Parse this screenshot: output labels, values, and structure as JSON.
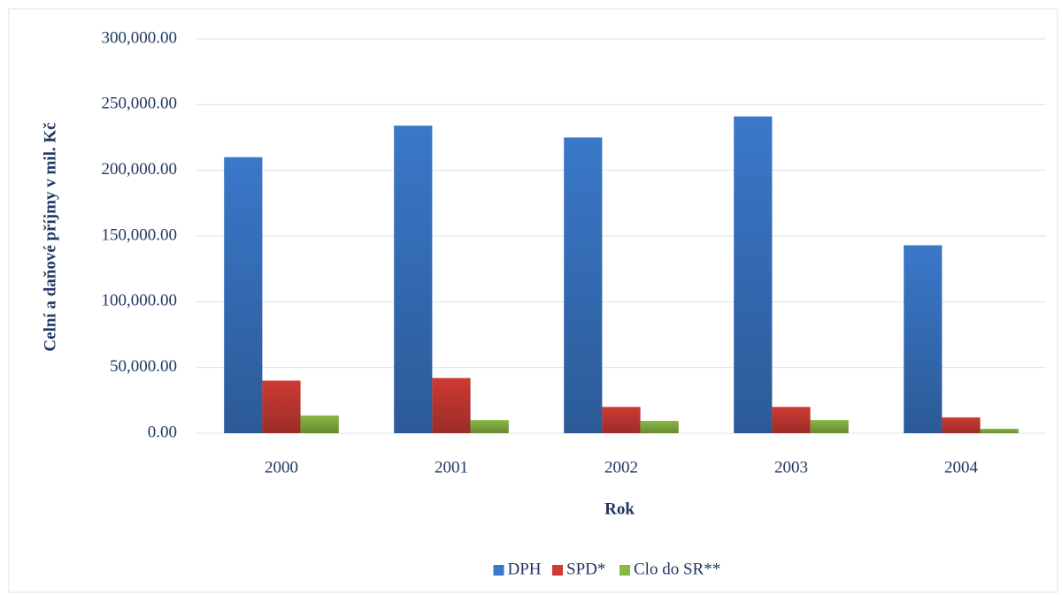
{
  "chart_data": {
    "type": "bar",
    "y_label": "Celní a daňové příjmy v mil. Kč",
    "x_label": "Rok",
    "categories": [
      "2000",
      "2001",
      "2002",
      "2003",
      "2004"
    ],
    "series": [
      {
        "name": "DPH",
        "color": "#3a78c9",
        "values": [
          210000,
          234000,
          225000,
          241000,
          143000
        ]
      },
      {
        "name": "SPD*",
        "color": "#cf3a34",
        "values": [
          40000,
          42000,
          20000,
          20000,
          12000
        ]
      },
      {
        "name": "Clo do SR**",
        "color": "#89b843",
        "values": [
          13500,
          10000,
          9400,
          10000,
          3400
        ]
      }
    ],
    "ylim": [
      0,
      300000
    ],
    "yticks": [
      {
        "value": 0,
        "label": "0.00"
      },
      {
        "value": 50000,
        "label": "50,000.00"
      },
      {
        "value": 100000,
        "label": "100,000.00"
      },
      {
        "value": 150000,
        "label": "150,000.00"
      },
      {
        "value": 200000,
        "label": "200,000.00"
      },
      {
        "value": 250000,
        "label": "250,000.00"
      },
      {
        "value": 300000,
        "label": "300,000.00"
      }
    ],
    "grid": true,
    "legend": "bottom"
  }
}
